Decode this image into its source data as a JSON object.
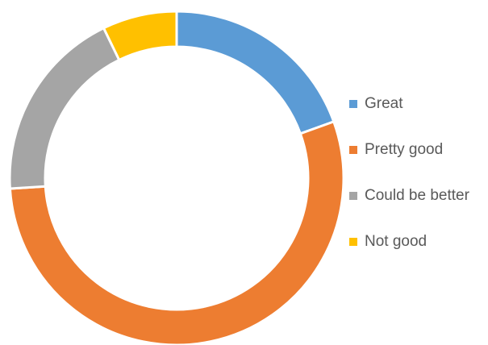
{
  "chart_data": {
    "type": "pie",
    "title": "",
    "donut": true,
    "legend_position": "right",
    "categories": [
      "Great",
      "Pretty good",
      "Could be better",
      "Not good"
    ],
    "values": [
      19.5,
      54.5,
      18.8,
      7.2
    ],
    "colors": [
      "#5b9bd5",
      "#ed7d31",
      "#a5a5a5",
      "#ffc000"
    ]
  }
}
